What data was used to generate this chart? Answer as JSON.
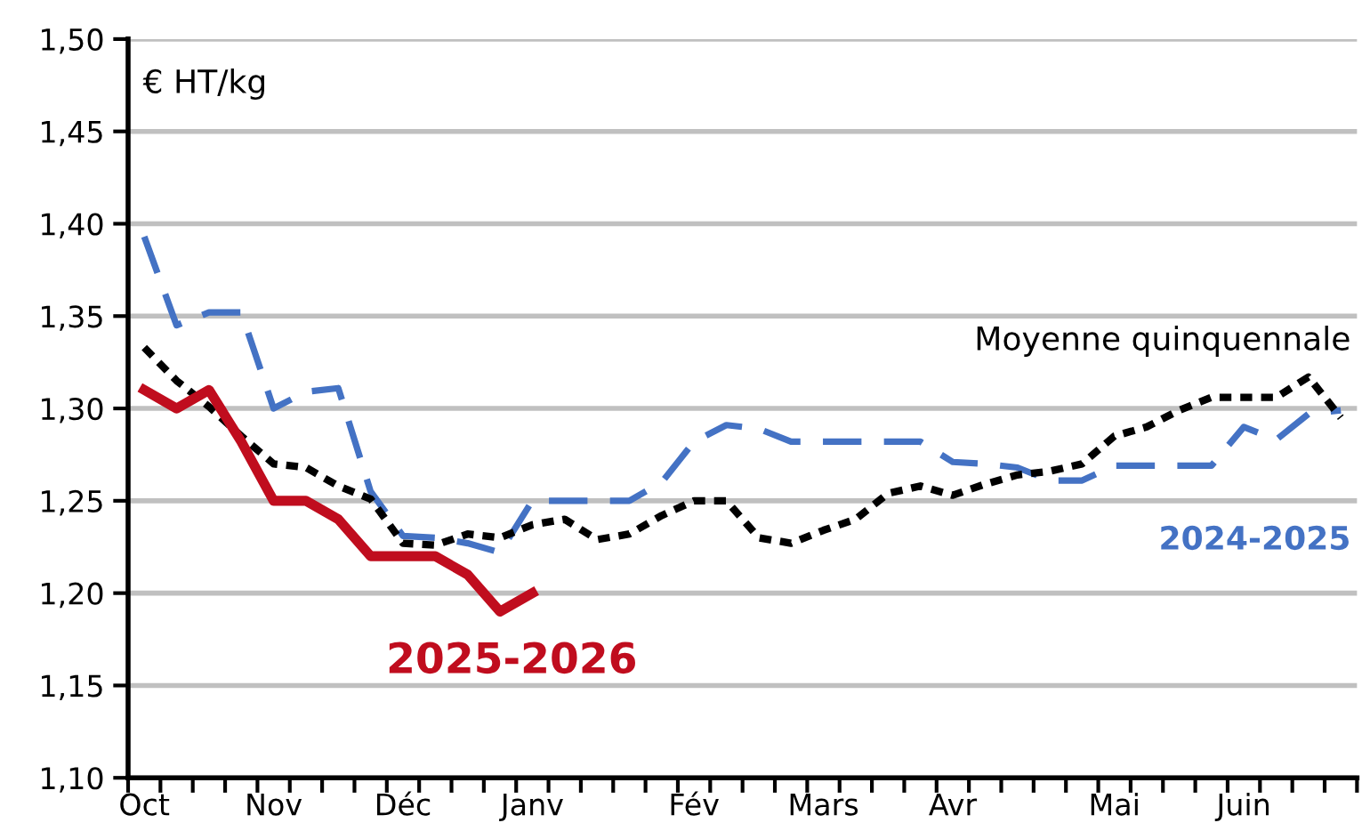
{
  "chart_data": {
    "type": "line",
    "ylabel": "€ HT/kg",
    "categories": [
      "Oct",
      null,
      null,
      null,
      "Nov",
      null,
      null,
      null,
      "Déc",
      null,
      null,
      null,
      "Janv",
      null,
      null,
      null,
      null,
      "Fév",
      null,
      null,
      null,
      "Mars",
      null,
      null,
      null,
      "Avr",
      null,
      null,
      null,
      null,
      "Mai",
      null,
      null,
      null,
      "Juin",
      null,
      null,
      null
    ],
    "series": [
      {
        "name": "2024-2025",
        "color": "#4472c4",
        "line_style": "dashed",
        "values": [
          1.393,
          1.345,
          1.352,
          1.352,
          1.3,
          1.309,
          1.311,
          1.255,
          1.231,
          1.23,
          1.227,
          1.222,
          1.25,
          1.25,
          1.25,
          1.25,
          1.26,
          1.282,
          1.291,
          1.289,
          1.282,
          1.282,
          1.282,
          1.282,
          1.282,
          1.271,
          1.27,
          1.268,
          1.261,
          1.261,
          1.269,
          1.269,
          1.269,
          1.269,
          1.29,
          1.283,
          1.297,
          1.299
        ]
      },
      {
        "name": "Moyenne quinquennale",
        "color": "#000000",
        "line_style": "dotted",
        "values": [
          1.333,
          1.315,
          1.301,
          1.285,
          1.27,
          1.268,
          1.258,
          1.251,
          1.227,
          1.226,
          1.232,
          1.23,
          1.237,
          1.24,
          1.229,
          1.232,
          1.242,
          1.25,
          1.25,
          1.23,
          1.227,
          1.234,
          1.24,
          1.254,
          1.258,
          1.253,
          1.259,
          1.264,
          1.266,
          1.27,
          1.285,
          1.29,
          1.299,
          1.306,
          1.306,
          1.306,
          1.317,
          1.295
        ]
      },
      {
        "name": "2025-2026",
        "color": "#c00d1e",
        "line_style": "solid",
        "values": [
          1.31,
          1.3,
          1.31,
          1.282,
          1.25,
          1.25,
          1.24,
          1.22,
          1.22,
          1.22,
          1.21,
          1.19,
          1.2,
          null,
          null,
          null,
          null,
          null,
          null,
          null,
          null,
          null,
          null,
          null,
          null,
          null,
          null,
          null,
          null,
          null,
          null,
          null,
          null,
          null,
          null,
          null,
          null,
          null
        ]
      }
    ],
    "ylim": [
      1.1,
      1.5
    ],
    "yticks": [
      {
        "value": 1.1,
        "label": "1,10"
      },
      {
        "value": 1.15,
        "label": "1,15"
      },
      {
        "value": 1.2,
        "label": "1,20"
      },
      {
        "value": 1.25,
        "label": "1,25"
      },
      {
        "value": 1.3,
        "label": "1,30"
      },
      {
        "value": 1.35,
        "label": "1,35"
      },
      {
        "value": 1.4,
        "label": "1,40"
      },
      {
        "value": 1.45,
        "label": "1,45"
      },
      {
        "value": 1.5,
        "label": "1,50"
      }
    ],
    "grid": "y",
    "legend": false,
    "marker": "none"
  }
}
